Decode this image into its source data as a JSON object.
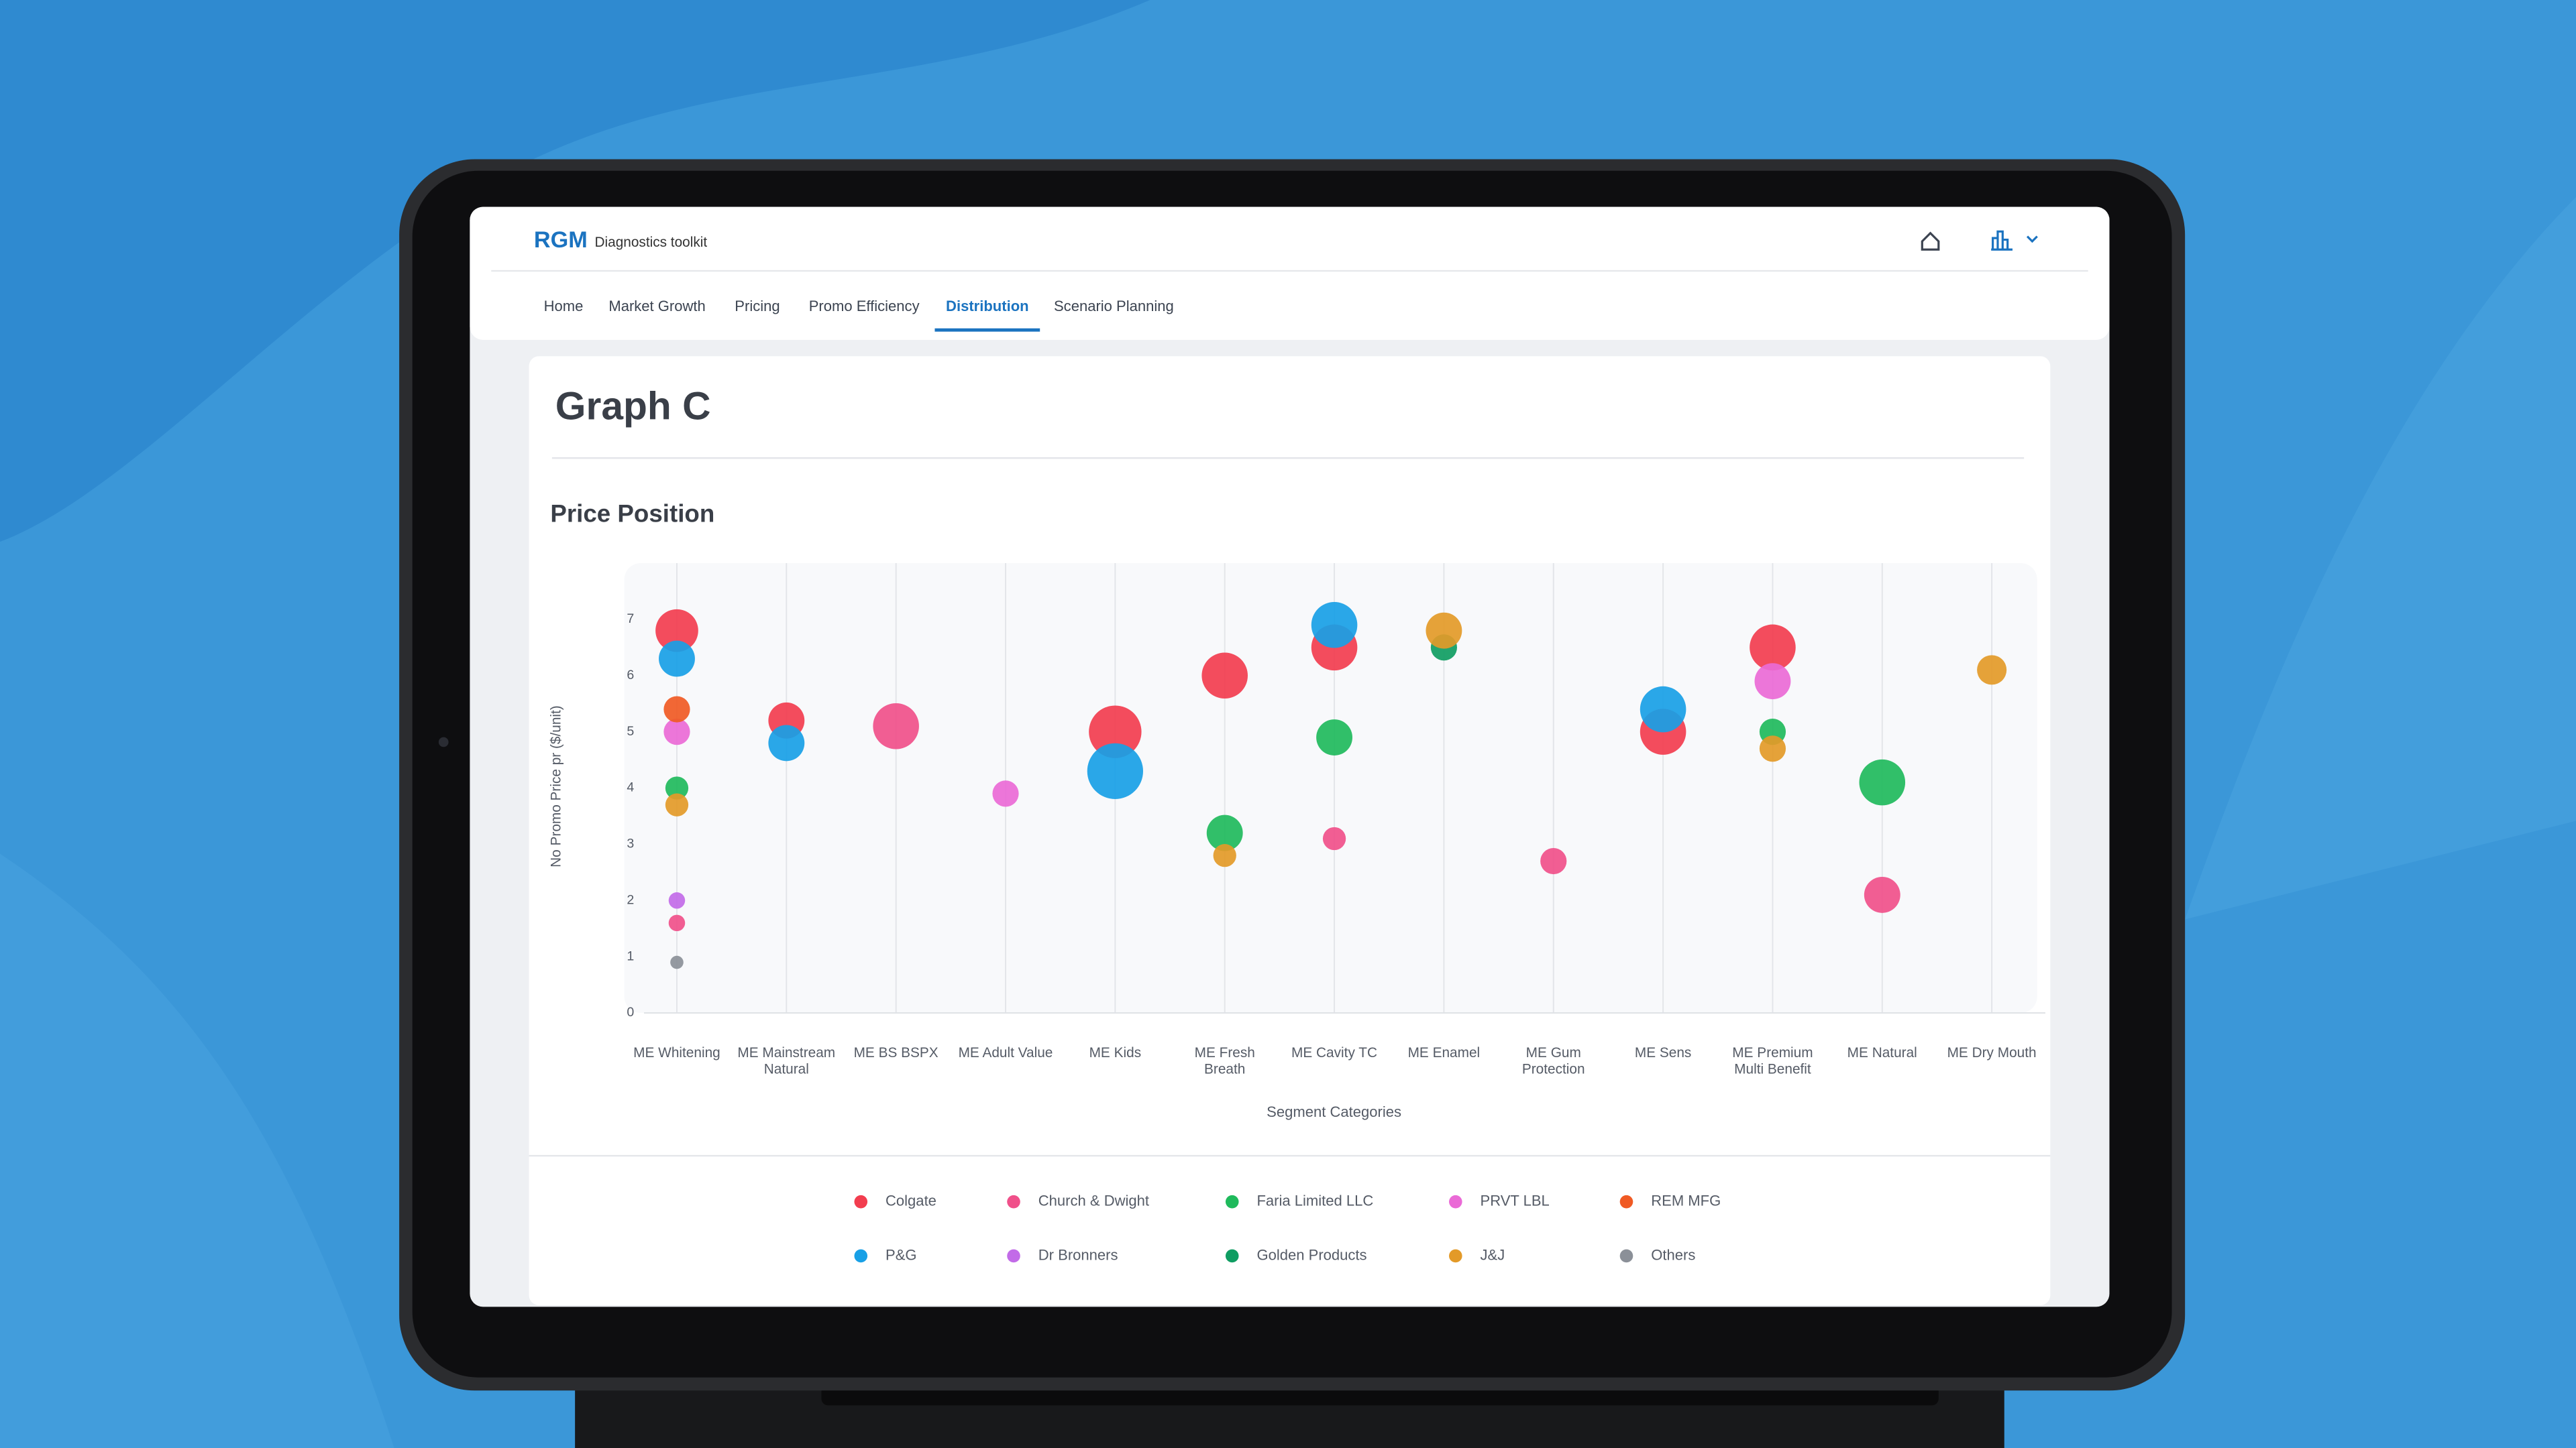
{
  "app": {
    "brand": "RGM",
    "subtitle": "Diagnostics toolkit",
    "nav": [
      "Home",
      "Market Growth",
      "Pricing",
      "Promo Efficiency",
      "Distribution",
      "Scenario Planning"
    ],
    "active": "Distribution",
    "page_title": "Graph C"
  },
  "chart_data": {
    "type": "scatter",
    "title": "Price Position",
    "x_label": "Segment Categories",
    "y_label": "No Promo Price pr ($/unit)",
    "categories": [
      "ME Whitening",
      "ME Mainstream Natural",
      "ME BS BSPX",
      "ME Adult Value",
      "ME Kids",
      "ME Fresh Breath",
      "ME Cavity TC",
      "ME Enamel",
      "ME Gum Protection",
      "ME Sens",
      "ME Premium Multi Benefit",
      "ME Natural",
      "ME Dry Mouth"
    ],
    "ylim": [
      0,
      8
    ],
    "yticks": [
      0,
      1,
      2,
      3,
      4,
      5,
      6,
      7
    ],
    "series": [
      {
        "name": "Colgate",
        "color": "#f23d4f",
        "values": [
          6.8,
          5.2,
          null,
          null,
          5.0,
          6.0,
          6.5,
          null,
          null,
          5.0,
          6.5,
          null,
          null
        ],
        "sizes": [
          13,
          11,
          null,
          null,
          16,
          14,
          14,
          null,
          null,
          14,
          14,
          null,
          null
        ]
      },
      {
        "name": "Church & Dwight",
        "color": "#f0508a",
        "values": [
          1.6,
          null,
          5.1,
          null,
          null,
          null,
          3.1,
          null,
          2.7,
          null,
          null,
          2.1,
          null
        ],
        "sizes": [
          5,
          null,
          14,
          null,
          null,
          null,
          7,
          null,
          8,
          null,
          null,
          11,
          null
        ]
      },
      {
        "name": "Faria Limited LLC",
        "color": "#1fba5c",
        "values": [
          4.0,
          null,
          null,
          null,
          null,
          3.2,
          4.9,
          null,
          null,
          null,
          5.0,
          4.1,
          null
        ],
        "sizes": [
          7,
          null,
          null,
          null,
          null,
          11,
          11,
          null,
          null,
          null,
          8,
          14,
          null
        ]
      },
      {
        "name": "PRVT LBL",
        "color": "#ea6ad6",
        "values": [
          5.0,
          null,
          null,
          3.9,
          null,
          null,
          null,
          null,
          null,
          null,
          5.9,
          null,
          null
        ],
        "sizes": [
          8,
          null,
          null,
          8,
          null,
          null,
          null,
          null,
          null,
          null,
          11,
          null,
          null
        ]
      },
      {
        "name": "REM MFG",
        "color": "#f05a24",
        "values": [
          5.4,
          null,
          null,
          null,
          null,
          null,
          null,
          null,
          null,
          null,
          null,
          null,
          null
        ],
        "sizes": [
          8,
          null,
          null,
          null,
          null,
          null,
          null,
          null,
          null,
          null,
          null,
          null,
          null
        ]
      },
      {
        "name": "P&G",
        "color": "#18a0e6",
        "values": [
          6.3,
          4.8,
          null,
          null,
          4.3,
          null,
          6.9,
          null,
          null,
          5.4,
          null,
          null,
          null
        ],
        "sizes": [
          11,
          11,
          null,
          null,
          17,
          null,
          14,
          null,
          null,
          14,
          null,
          null,
          null
        ]
      },
      {
        "name": "Dr Bronners",
        "color": "#c26be8",
        "values": [
          2.0,
          null,
          null,
          null,
          null,
          null,
          null,
          null,
          null,
          null,
          null,
          null,
          null
        ],
        "sizes": [
          5,
          null,
          null,
          null,
          null,
          null,
          null,
          null,
          null,
          null,
          null,
          null,
          null
        ]
      },
      {
        "name": "Golden Products",
        "color": "#0f9d62",
        "values": [
          null,
          null,
          null,
          null,
          null,
          null,
          null,
          6.5,
          null,
          null,
          null,
          null,
          null
        ],
        "sizes": [
          null,
          null,
          null,
          null,
          null,
          null,
          null,
          8,
          null,
          null,
          null,
          null,
          null
        ]
      },
      {
        "name": "J&J",
        "color": "#e39a28",
        "values": [
          3.7,
          null,
          null,
          null,
          null,
          2.8,
          null,
          6.8,
          null,
          null,
          4.7,
          null,
          6.1
        ],
        "sizes": [
          7,
          null,
          null,
          null,
          null,
          7,
          null,
          11,
          null,
          null,
          8,
          null,
          9
        ]
      },
      {
        "name": "Others",
        "color": "#8b9098",
        "values": [
          0.9,
          null,
          null,
          null,
          null,
          null,
          null,
          null,
          null,
          null,
          null,
          null,
          null
        ],
        "sizes": [
          4,
          null,
          null,
          null,
          null,
          null,
          null,
          null,
          null,
          null,
          null,
          null,
          null
        ]
      }
    ]
  }
}
